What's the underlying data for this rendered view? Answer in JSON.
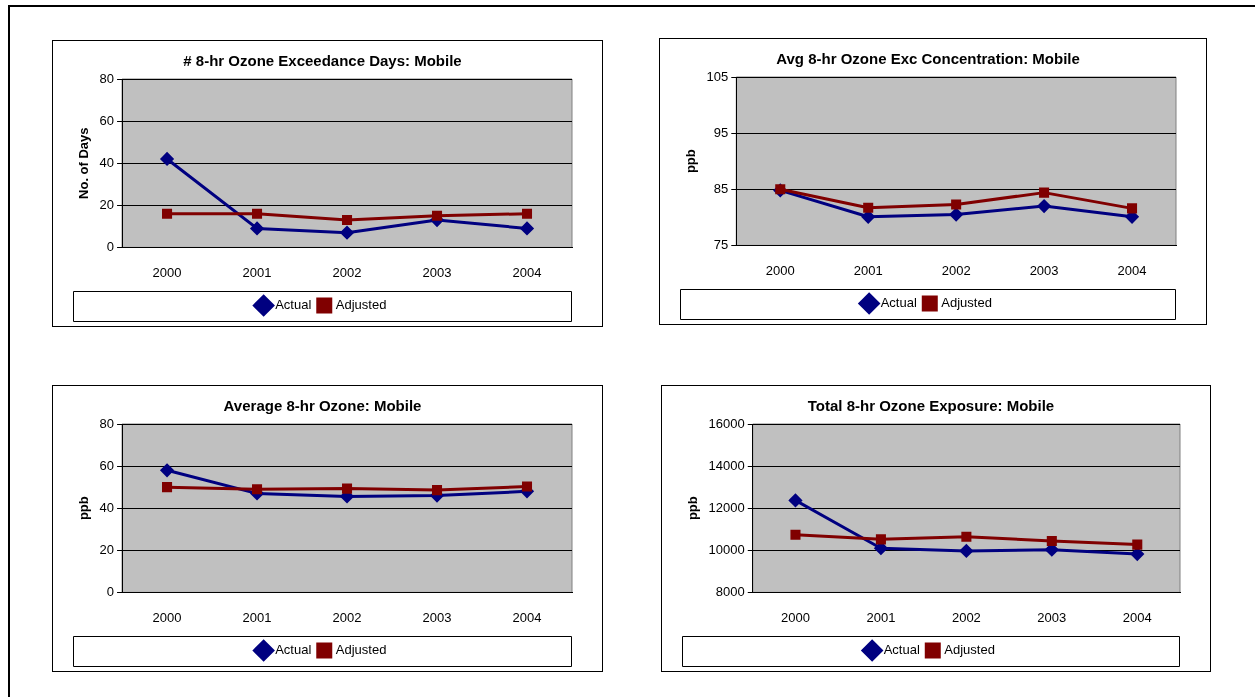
{
  "chart_data": [
    {
      "type": "line",
      "title": "# 8-hr Ozone Exceedance Days: Mobile",
      "ylabel": "No. of Days",
      "categories": [
        "2000",
        "2001",
        "2002",
        "2003",
        "2004"
      ],
      "series": [
        {
          "name": "Actual",
          "color": "#000080",
          "marker": "diamond",
          "values": [
            42,
            9,
            7,
            13,
            9
          ]
        },
        {
          "name": "Adjusted",
          "color": "#800000",
          "marker": "square",
          "values": [
            16,
            16,
            13,
            15,
            16
          ]
        }
      ],
      "ylim": [
        0,
        80
      ],
      "yticks": [
        0,
        20,
        40,
        60,
        80
      ],
      "grid": "y",
      "legend": "bottom"
    },
    {
      "type": "line",
      "title": "Avg 8-hr Ozone Exc Concentration: Mobile",
      "ylabel": "ppb",
      "categories": [
        "2000",
        "2001",
        "2002",
        "2003",
        "2004"
      ],
      "series": [
        {
          "name": "Actual",
          "color": "#000080",
          "marker": "diamond",
          "values": [
            84.8,
            80.1,
            80.5,
            82,
            80.1
          ]
        },
        {
          "name": "Adjusted",
          "color": "#800000",
          "marker": "square",
          "values": [
            85,
            81.7,
            82.3,
            84.4,
            81.6
          ]
        }
      ],
      "ylim": [
        75,
        105
      ],
      "yticks": [
        75,
        85,
        95,
        105
      ],
      "grid": "y",
      "legend": "bottom"
    },
    {
      "type": "line",
      "title": "Average 8-hr Ozone: Mobile",
      "ylabel": "ppb",
      "categories": [
        "2000",
        "2001",
        "2002",
        "2003",
        "2004"
      ],
      "series": [
        {
          "name": "Actual",
          "color": "#000080",
          "marker": "diamond",
          "values": [
            58,
            47,
            45.6,
            46,
            48
          ]
        },
        {
          "name": "Adjusted",
          "color": "#800000",
          "marker": "square",
          "values": [
            50,
            49,
            49.3,
            48.6,
            50.3
          ]
        }
      ],
      "ylim": [
        0,
        80
      ],
      "yticks": [
        0,
        20,
        40,
        60,
        80
      ],
      "grid": "y",
      "legend": "bottom"
    },
    {
      "type": "line",
      "title": "Total 8-hr Ozone Exposure: Mobile",
      "ylabel": "ppb",
      "categories": [
        "2000",
        "2001",
        "2002",
        "2003",
        "2004"
      ],
      "series": [
        {
          "name": "Actual",
          "color": "#000080",
          "marker": "diamond",
          "values": [
            12370,
            10100,
            9970,
            10030,
            9820
          ]
        },
        {
          "name": "Adjusted",
          "color": "#800000",
          "marker": "square",
          "values": [
            10740,
            10520,
            10640,
            10440,
            10270
          ]
        }
      ],
      "ylim": [
        8000,
        16000
      ],
      "yticks": [
        8000,
        10000,
        12000,
        14000,
        16000
      ],
      "grid": "y",
      "legend": "bottom"
    }
  ]
}
